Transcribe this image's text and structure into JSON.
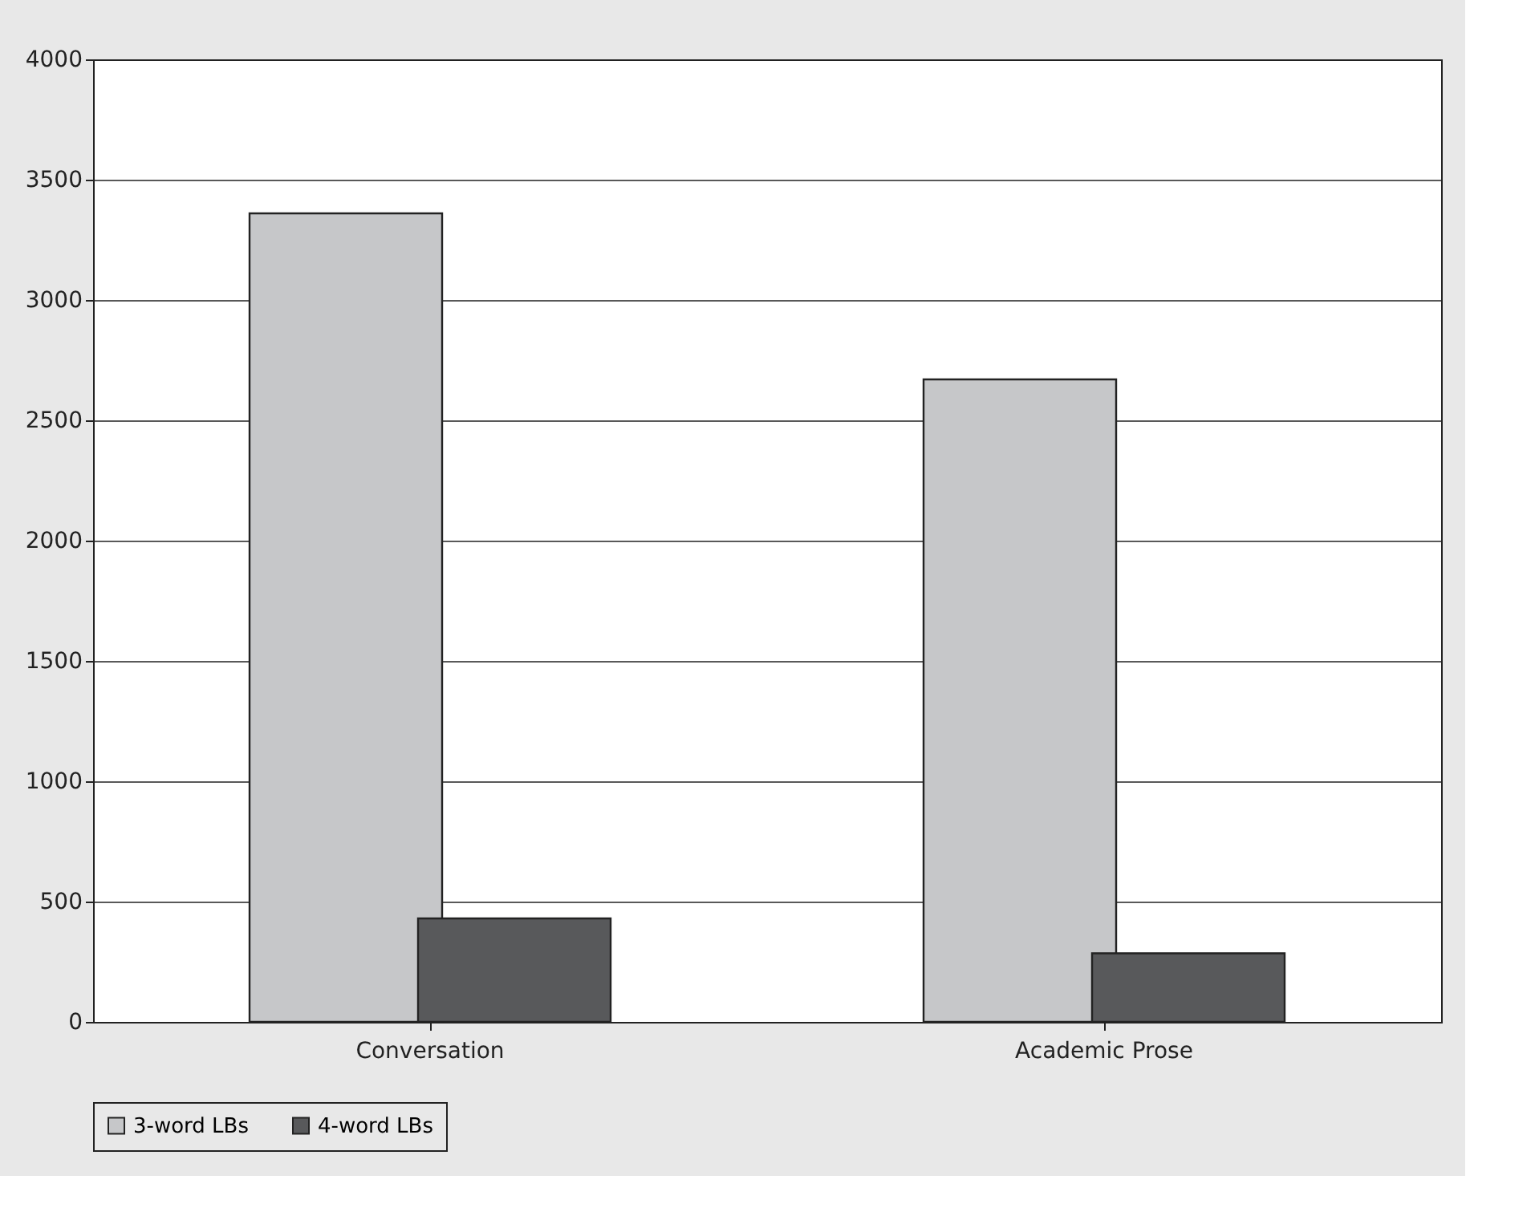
{
  "chart_data": {
    "type": "bar",
    "categories": [
      "Conversation",
      "Academic Prose"
    ],
    "series": [
      {
        "name": "3-word LBs",
        "color": "#c6c7c9",
        "values": [
          3360,
          2670
        ]
      },
      {
        "name": "4-word LBs",
        "color": "#58595b",
        "values": [
          430,
          285
        ]
      }
    ],
    "ylim": [
      0,
      4000
    ],
    "yticks": [
      0,
      500,
      1000,
      1500,
      2000,
      2500,
      3000,
      3500,
      4000
    ],
    "grid": "y",
    "legend": "bottom"
  }
}
